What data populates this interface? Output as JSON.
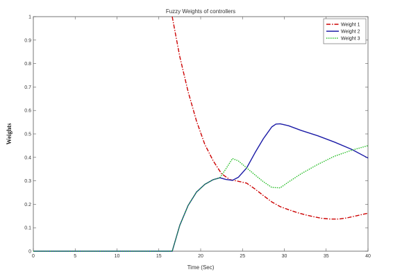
{
  "chart_data": {
    "type": "line",
    "title": "Fuzzy Weights of controllers",
    "xlabel": "Time (Sec)",
    "ylabel": "Weights",
    "xlim": [
      0,
      40
    ],
    "ylim": [
      0,
      1
    ],
    "xticks": [
      "0",
      "5",
      "10",
      "15",
      "20",
      "25",
      "30",
      "35",
      "40"
    ],
    "yticks": [
      "0",
      "0.1",
      "0.2",
      "0.3",
      "0.4",
      "0.5",
      "0.6",
      "0.7",
      "0.8",
      "0.9",
      "1"
    ],
    "grid": false,
    "legend_position": "top-right",
    "series": [
      {
        "name": "Weight 1",
        "color": "#cc0000",
        "style": "dashdot",
        "x": [
          16.6,
          17.5,
          18.5,
          19.5,
          20.5,
          21.5,
          22.5,
          23.5,
          24.5,
          25.5,
          26.5,
          27.5,
          28.5,
          29.5,
          30.5,
          31.5,
          32.5,
          33.5,
          34.5,
          35.5,
          36.5,
          37.5,
          38.5,
          39.5,
          40
        ],
        "y": [
          1.0,
          0.83,
          0.68,
          0.555,
          0.455,
          0.385,
          0.33,
          0.305,
          0.298,
          0.29,
          0.265,
          0.237,
          0.21,
          0.19,
          0.177,
          0.165,
          0.155,
          0.147,
          0.14,
          0.137,
          0.137,
          0.142,
          0.15,
          0.158,
          0.162
        ]
      },
      {
        "name": "Weight 2",
        "color": "#1a1aa6",
        "style": "solid",
        "x": [
          0,
          16.6,
          17.5,
          18.5,
          19.5,
          20.5,
          21.5,
          22.3,
          23.0,
          23.8,
          24.5,
          25.5,
          26.5,
          27.5,
          28.5,
          29.0,
          29.5,
          30.5,
          32,
          34,
          36,
          38,
          40
        ],
        "y": [
          0,
          0,
          0.11,
          0.195,
          0.252,
          0.285,
          0.305,
          0.313,
          0.306,
          0.302,
          0.315,
          0.355,
          0.42,
          0.48,
          0.53,
          0.542,
          0.543,
          0.535,
          0.515,
          0.492,
          0.465,
          0.435,
          0.397
        ]
      },
      {
        "name": "Weight 3",
        "color": "#22bb22",
        "style": "dotted",
        "x": [
          0,
          16.6,
          17.5,
          18.5,
          19.5,
          20.5,
          21.5,
          22.3,
          23.0,
          23.8,
          24.5,
          25.5,
          26.5,
          27.5,
          28.5,
          29.5,
          30.5,
          32,
          34,
          36,
          38,
          40
        ],
        "y": [
          0,
          0,
          0.11,
          0.195,
          0.252,
          0.285,
          0.305,
          0.313,
          0.35,
          0.395,
          0.385,
          0.355,
          0.325,
          0.296,
          0.272,
          0.27,
          0.295,
          0.33,
          0.37,
          0.405,
          0.43,
          0.45
        ]
      }
    ]
  }
}
